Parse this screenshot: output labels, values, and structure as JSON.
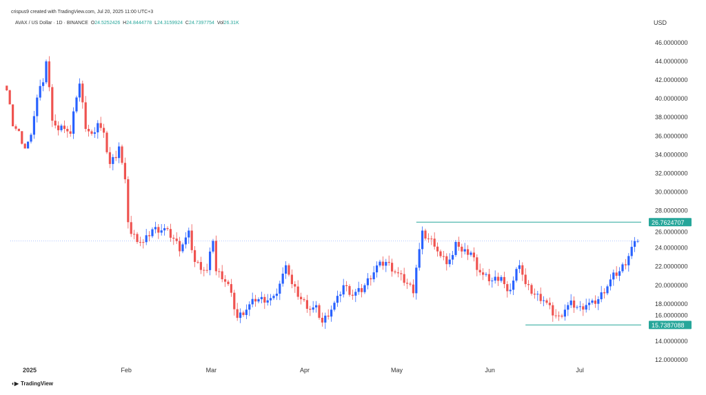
{
  "header": {
    "credit": "crispus9 created with TradingView.com, Jul 20, 2025 11:00 UTC+3",
    "symbol": "AVAX / US Dollar · 1D · BINANCE",
    "o_label": "O",
    "o": "24.5252426",
    "h_label": "H",
    "h": "24.8444778",
    "l_label": "L",
    "l": "24.3159924",
    "c_label": "C",
    "c": "24.7397754",
    "vol_label": "Vol",
    "vol": "26.31K"
  },
  "brand": "TradingView",
  "chart_data": {
    "type": "candlestick",
    "currency": "USD",
    "ylim": [
      12,
      46
    ],
    "y_ticks": [
      "46.0000000",
      "44.0000000",
      "42.0000000",
      "40.0000000",
      "38.0000000",
      "36.0000000",
      "34.0000000",
      "32.0000000",
      "30.0000000",
      "28.0000000",
      "26.0000000",
      "24.0000000",
      "22.0000000",
      "20.0000000",
      "18.0000000",
      "16.0000000",
      "14.0000000",
      "12.0000000"
    ],
    "x_ticks": [
      {
        "label": "2025",
        "day": 0
      },
      {
        "label": "Feb",
        "day": 31
      },
      {
        "label": "Mar",
        "day": 59
      },
      {
        "label": "Apr",
        "day": 90
      },
      {
        "label": "May",
        "day": 120
      },
      {
        "label": "Jun",
        "day": 151
      },
      {
        "label": "Jul",
        "day": 181
      }
    ],
    "x_unit": "days since 2025-01-01",
    "close_keypoints": [
      [
        -8,
        41.5
      ],
      [
        -6,
        38
      ],
      [
        -4,
        37
      ],
      [
        -2,
        35.5
      ],
      [
        0,
        36.5
      ],
      [
        2,
        40
      ],
      [
        4,
        42
      ],
      [
        5,
        44
      ],
      [
        6,
        41
      ],
      [
        7,
        38
      ],
      [
        9,
        36.5
      ],
      [
        11,
        37
      ],
      [
        13,
        36
      ],
      [
        14,
        39
      ],
      [
        16,
        41.5
      ],
      [
        18,
        37
      ],
      [
        20,
        36
      ],
      [
        22,
        37.5
      ],
      [
        24,
        36
      ],
      [
        26,
        33
      ],
      [
        28,
        34
      ],
      [
        29,
        35
      ],
      [
        30,
        33
      ],
      [
        31,
        31
      ],
      [
        32,
        27
      ],
      [
        33,
        25.5
      ],
      [
        35,
        25
      ],
      [
        37,
        24.5
      ],
      [
        40,
        26
      ],
      [
        44,
        26
      ],
      [
        47,
        25
      ],
      [
        49,
        24
      ],
      [
        52,
        25.5
      ],
      [
        54,
        22.5
      ],
      [
        56,
        22
      ],
      [
        58,
        21.5
      ],
      [
        60,
        25
      ],
      [
        61,
        21.5
      ],
      [
        63,
        21
      ],
      [
        65,
        20
      ],
      [
        68,
        16.5
      ],
      [
        71,
        17.5
      ],
      [
        74,
        18.5
      ],
      [
        77,
        18.5
      ],
      [
        80,
        18.5
      ],
      [
        83,
        21
      ],
      [
        84,
        22.5
      ],
      [
        86,
        20
      ],
      [
        89,
        18.5
      ],
      [
        92,
        17.5
      ],
      [
        94,
        17.5
      ],
      [
        96,
        16
      ],
      [
        98,
        17
      ],
      [
        101,
        18.5
      ],
      [
        103,
        20
      ],
      [
        106,
        19
      ],
      [
        109,
        19.5
      ],
      [
        111,
        20.5
      ],
      [
        114,
        22
      ],
      [
        117,
        22.5
      ],
      [
        120,
        21.5
      ],
      [
        123,
        20.5
      ],
      [
        126,
        19.5
      ],
      [
        127,
        22
      ],
      [
        129,
        25.5
      ],
      [
        131,
        25
      ],
      [
        133,
        24.5
      ],
      [
        135,
        23
      ],
      [
        137,
        22.5
      ],
      [
        139,
        23
      ],
      [
        140,
        25
      ],
      [
        142,
        23.5
      ],
      [
        145,
        23.5
      ],
      [
        147,
        22
      ],
      [
        149,
        21
      ],
      [
        152,
        20.5
      ],
      [
        155,
        21
      ],
      [
        157,
        19
      ],
      [
        159,
        20.5
      ],
      [
        161,
        22.5
      ],
      [
        163,
        20
      ],
      [
        166,
        19
      ],
      [
        169,
        18.5
      ],
      [
        172,
        17
      ],
      [
        174,
        16.5
      ],
      [
        176,
        17.5
      ],
      [
        178,
        18
      ],
      [
        181,
        17.5
      ],
      [
        183,
        18
      ],
      [
        185,
        18
      ],
      [
        187,
        18.5
      ],
      [
        190,
        20
      ],
      [
        192,
        21
      ],
      [
        194,
        21.5
      ],
      [
        196,
        22.5
      ],
      [
        198,
        24
      ],
      [
        200,
        24.74
      ]
    ],
    "levels": [
      {
        "label": "26.7624707",
        "value": 26.7624707,
        "from_day": 127
      },
      {
        "label": "15.7387088",
        "value": 15.7387088,
        "from_day": 163
      }
    ],
    "last_price": 24.7397754,
    "colors": {
      "up": "#2962ff",
      "down": "#ef5350",
      "level": "#26a69a"
    }
  }
}
